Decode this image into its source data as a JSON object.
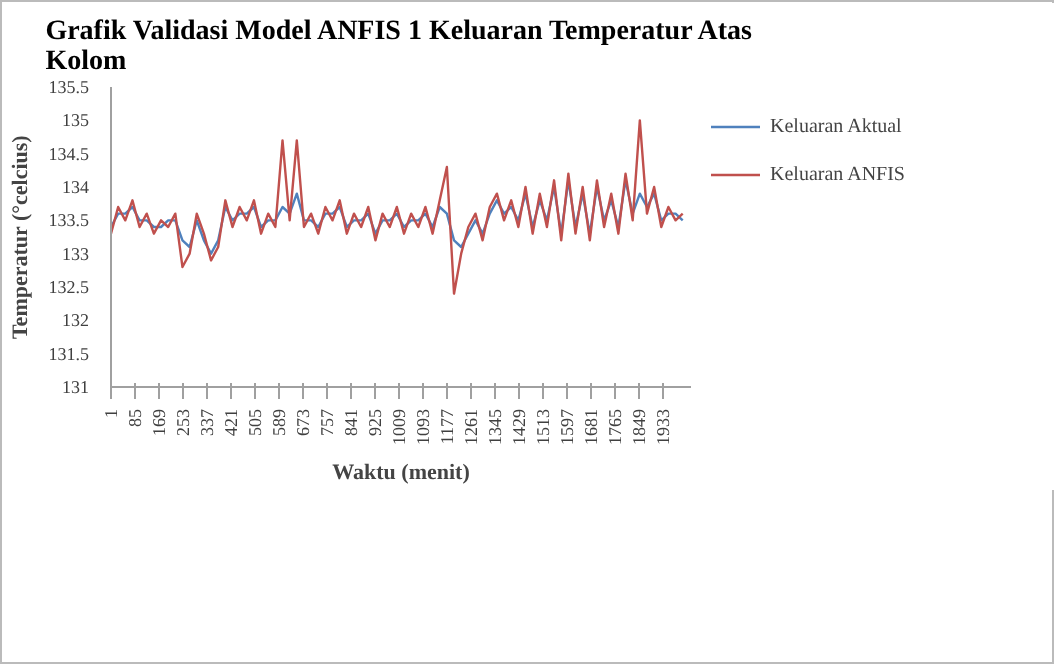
{
  "chart_data": {
    "type": "line",
    "title": "Grafik Validasi Model ANFIS 1 Keluaran Temperatur Atas\nKolom",
    "xlabel": "Waktu (menit)",
    "ylabel": "Temperatur (°celcius)",
    "x": [
      1,
      26,
      51,
      76,
      101,
      126,
      151,
      176,
      201,
      226,
      251,
      276,
      301,
      326,
      351,
      376,
      401,
      426,
      451,
      476,
      501,
      526,
      551,
      576,
      601,
      626,
      651,
      676,
      701,
      726,
      751,
      776,
      801,
      826,
      851,
      876,
      901,
      926,
      951,
      976,
      1001,
      1026,
      1051,
      1076,
      1101,
      1126,
      1151,
      1176,
      1201,
      1226,
      1251,
      1276,
      1301,
      1326,
      1351,
      1376,
      1401,
      1426,
      1451,
      1476,
      1501,
      1526,
      1551,
      1576,
      1601,
      1626,
      1651,
      1676,
      1701,
      1726,
      1751,
      1776,
      1801,
      1826,
      1851,
      1876,
      1901,
      1926,
      1951,
      1976,
      2001
    ],
    "series": [
      {
        "name": "Keluaran Aktual",
        "color": "#4f81bd",
        "values": [
          133.4,
          133.6,
          133.6,
          133.7,
          133.5,
          133.5,
          133.4,
          133.4,
          133.5,
          133.5,
          133.2,
          133.1,
          133.5,
          133.2,
          133.0,
          133.2,
          133.7,
          133.5,
          133.6,
          133.6,
          133.7,
          133.4,
          133.5,
          133.5,
          133.7,
          133.6,
          133.9,
          133.5,
          133.5,
          133.4,
          133.6,
          133.6,
          133.7,
          133.4,
          133.5,
          133.5,
          133.6,
          133.3,
          133.5,
          133.5,
          133.6,
          133.4,
          133.5,
          133.5,
          133.6,
          133.4,
          133.7,
          133.6,
          133.2,
          133.1,
          133.3,
          133.5,
          133.3,
          133.6,
          133.8,
          133.6,
          133.7,
          133.5,
          133.9,
          133.4,
          133.8,
          133.5,
          134.0,
          133.3,
          134.1,
          133.4,
          133.9,
          133.3,
          134.0,
          133.5,
          133.8,
          133.4,
          134.1,
          133.6,
          133.9,
          133.7,
          133.9,
          133.5,
          133.6,
          133.6,
          133.5
        ]
      },
      {
        "name": "Keluaran ANFIS",
        "color": "#c0504d",
        "values": [
          133.3,
          133.7,
          133.5,
          133.8,
          133.4,
          133.6,
          133.3,
          133.5,
          133.4,
          133.6,
          132.8,
          133.0,
          133.6,
          133.3,
          132.9,
          133.1,
          133.8,
          133.4,
          133.7,
          133.5,
          133.8,
          133.3,
          133.6,
          133.4,
          134.7,
          133.5,
          134.7,
          133.4,
          133.6,
          133.3,
          133.7,
          133.5,
          133.8,
          133.3,
          133.6,
          133.4,
          133.7,
          133.2,
          133.6,
          133.4,
          133.7,
          133.3,
          133.6,
          133.4,
          133.7,
          133.3,
          133.8,
          134.3,
          132.4,
          133.0,
          133.4,
          133.6,
          133.2,
          133.7,
          133.9,
          133.5,
          133.8,
          133.4,
          134.0,
          133.3,
          133.9,
          133.4,
          134.1,
          133.2,
          134.2,
          133.3,
          134.0,
          133.2,
          134.1,
          133.4,
          133.9,
          133.3,
          134.2,
          133.5,
          135.0,
          133.6,
          134.0,
          133.4,
          133.7,
          133.5,
          133.6
        ]
      }
    ],
    "xlim": [
      1,
      2030
    ],
    "xticks": [
      1,
      85,
      169,
      253,
      337,
      421,
      505,
      589,
      673,
      757,
      841,
      925,
      1009,
      1093,
      1177,
      1261,
      1345,
      1429,
      1513,
      1597,
      1681,
      1765,
      1849,
      1933
    ],
    "ylim": [
      131,
      135.5
    ],
    "yticks": [
      131,
      131.5,
      132,
      132.5,
      133,
      133.5,
      134,
      134.5,
      135,
      135.5
    ],
    "grid": false,
    "legend": "right",
    "marker": "none",
    "line_style": "solid"
  }
}
